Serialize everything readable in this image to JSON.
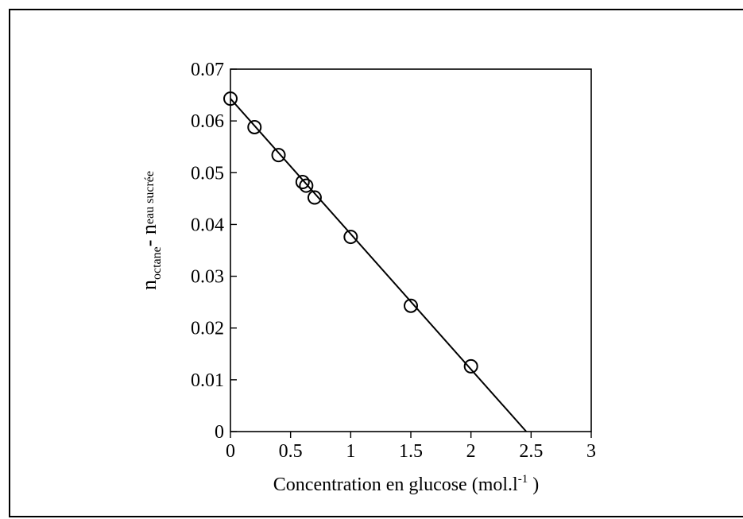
{
  "chart_data": {
    "type": "scatter",
    "title": "",
    "xlabel": "Concentration en glucose (mol.l",
    "xlabel_sup": "-1",
    "xlabel_close": ")",
    "ylabel_main": "n",
    "ylabel_sub1": "octane",
    "ylabel_dash": "- n",
    "ylabel_sub2": "eau sucrée",
    "xlim": [
      0,
      3
    ],
    "ylim": [
      0,
      0.07
    ],
    "xticks": [
      0,
      0.5,
      1,
      1.5,
      2,
      2.5,
      3
    ],
    "xtick_labels": [
      "0",
      "0.5",
      "1",
      "1.5",
      "2",
      "2.5",
      "3"
    ],
    "yticks": [
      0,
      0.01,
      0.02,
      0.03,
      0.04,
      0.05,
      0.06,
      0.07
    ],
    "ytick_labels": [
      "0",
      "0.01",
      "0.02",
      "0.03",
      "0.04",
      "0.05",
      "0.06",
      "0.07"
    ],
    "grid": false,
    "legend": "none",
    "series": [
      {
        "marker": "open-circle",
        "x": [
          0,
          0.2,
          0.4,
          0.6,
          0.63,
          0.7,
          1.0,
          1.5,
          2.0
        ],
        "y": [
          0.0643,
          0.0588,
          0.0534,
          0.0482,
          0.0475,
          0.0452,
          0.0376,
          0.0243,
          0.0126
        ]
      }
    ],
    "fit_line": {
      "x": [
        0,
        2.46
      ],
      "y": [
        0.0643,
        0
      ]
    },
    "colors": {
      "axis": "#000000",
      "marker": "#000000",
      "line": "#000000"
    }
  }
}
